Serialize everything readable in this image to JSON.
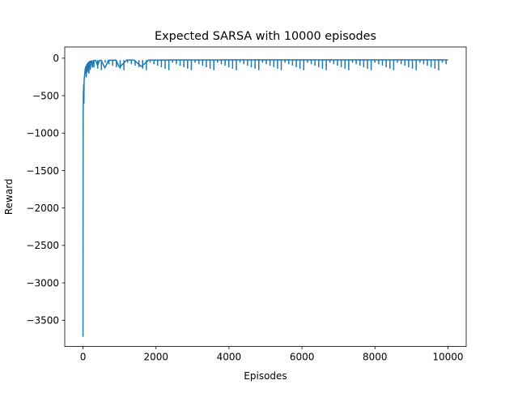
{
  "chart_data": {
    "type": "line",
    "title": "Expected SARSA with 10000 episodes",
    "xlabel": "Episodes",
    "ylabel": "Reward",
    "xlim": [
      -500,
      10500
    ],
    "ylim": [
      -3850,
      150
    ],
    "xticks": [
      0,
      2000,
      4000,
      6000,
      8000,
      10000
    ],
    "xtick_labels": [
      "0",
      "2000",
      "4000",
      "6000",
      "8000",
      "10000"
    ],
    "yticks": [
      0,
      -500,
      -1000,
      -1500,
      -2000,
      -2500,
      -3000,
      -3500
    ],
    "ytick_labels": [
      "0",
      "−500",
      "−1000",
      "−1500",
      "−2000",
      "−2500",
      "−3000",
      "−3500"
    ],
    "grid": false,
    "series": [
      {
        "color": "#1f77b4",
        "x": [
          0,
          2,
          5,
          10,
          15,
          20,
          25,
          30,
          40,
          50,
          60,
          70,
          80,
          90,
          100,
          110,
          120,
          130,
          140,
          150,
          160,
          170,
          180,
          190,
          200,
          220,
          240,
          260,
          280,
          300,
          350,
          400,
          450,
          500,
          600,
          700,
          800,
          900,
          1000,
          1200,
          1400,
          1600,
          1800,
          2000,
          2500,
          3000,
          3500,
          4000,
          4500,
          5000,
          5500,
          6000,
          6500,
          7000,
          7500,
          8000,
          8500,
          9000,
          9500,
          10000
        ],
        "y": [
          -3720,
          -2200,
          -700,
          -500,
          -400,
          -350,
          -600,
          -300,
          -250,
          -200,
          -150,
          -120,
          -110,
          -250,
          -90,
          -80,
          -180,
          -70,
          -60,
          -55,
          -200,
          -50,
          -45,
          -40,
          -150,
          -40,
          -35,
          -120,
          -35,
          -30,
          -30,
          -100,
          -28,
          -28,
          -130,
          -27,
          -27,
          -25,
          -120,
          -25,
          -25,
          -110,
          -24,
          -24,
          -23,
          -23,
          -23,
          -22,
          -22,
          -22,
          -22,
          -22,
          -22,
          -22,
          -22,
          -22,
          -22,
          -22,
          -22,
          -22
        ]
      }
    ],
    "spikes": {
      "x_from": 300,
      "x_to": 9950,
      "count": 95,
      "depths": [
        -60,
        -80,
        -100,
        -120,
        -140,
        -160
      ],
      "baseline": -25
    }
  }
}
